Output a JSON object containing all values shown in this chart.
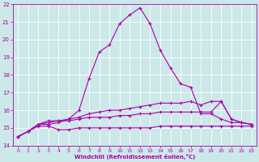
{
  "xlabel": "Windchill (Refroidissement éolien,°C)",
  "xlim": [
    -0.5,
    23.5
  ],
  "ylim": [
    14,
    22
  ],
  "xticks": [
    0,
    1,
    2,
    3,
    4,
    5,
    6,
    7,
    8,
    9,
    10,
    11,
    12,
    13,
    14,
    15,
    16,
    17,
    18,
    19,
    20,
    21,
    22,
    23
  ],
  "yticks": [
    14,
    15,
    16,
    17,
    18,
    19,
    20,
    21,
    22
  ],
  "bg_color": "#cce8e8",
  "line_color": "#aa00aa",
  "grid_color": "#ffffff",
  "lines": [
    {
      "x": [
        0,
        1,
        2,
        3,
        4,
        5,
        6,
        7,
        8,
        9,
        10,
        11,
        12,
        13,
        14,
        15,
        16,
        17,
        18,
        19,
        20,
        21,
        22,
        23
      ],
      "y": [
        14.5,
        14.8,
        15.2,
        15.2,
        15.3,
        15.5,
        16.0,
        17.8,
        19.3,
        19.7,
        20.9,
        21.4,
        21.8,
        20.9,
        19.4,
        18.4,
        17.5,
        17.3,
        15.8,
        15.8,
        15.5,
        15.3,
        15.3,
        15.2
      ],
      "marker": true
    },
    {
      "x": [
        0,
        1,
        2,
        3,
        4,
        5,
        6,
        7,
        8,
        9,
        10,
        11,
        12,
        13,
        14,
        15,
        16,
        17,
        18,
        19,
        20,
        21,
        22,
        23
      ],
      "y": [
        14.5,
        14.8,
        15.2,
        15.4,
        15.4,
        15.5,
        15.6,
        15.8,
        15.9,
        16.0,
        16.0,
        16.1,
        16.2,
        16.3,
        16.4,
        16.4,
        16.4,
        16.5,
        16.3,
        16.5,
        16.5,
        15.5,
        15.3,
        15.2
      ],
      "marker": true
    },
    {
      "x": [
        0,
        1,
        2,
        3,
        4,
        5,
        6,
        7,
        8,
        9,
        10,
        11,
        12,
        13,
        14,
        15,
        16,
        17,
        18,
        19,
        20,
        21,
        22,
        23
      ],
      "y": [
        14.5,
        14.8,
        15.2,
        15.3,
        15.4,
        15.4,
        15.5,
        15.6,
        15.6,
        15.6,
        15.7,
        15.7,
        15.8,
        15.8,
        15.9,
        15.9,
        15.9,
        15.9,
        15.9,
        15.9,
        16.5,
        15.5,
        15.3,
        15.2
      ],
      "marker": true
    },
    {
      "x": [
        0,
        1,
        2,
        3,
        4,
        5,
        6,
        7,
        8,
        9,
        10,
        11,
        12,
        13,
        14,
        15,
        16,
        17,
        18,
        19,
        20,
        21,
        22,
        23
      ],
      "y": [
        14.5,
        14.8,
        15.1,
        15.1,
        14.9,
        14.9,
        15.0,
        15.0,
        15.0,
        15.0,
        15.0,
        15.0,
        15.0,
        15.0,
        15.1,
        15.1,
        15.1,
        15.1,
        15.1,
        15.1,
        15.1,
        15.1,
        15.1,
        15.1
      ],
      "marker": true
    }
  ]
}
